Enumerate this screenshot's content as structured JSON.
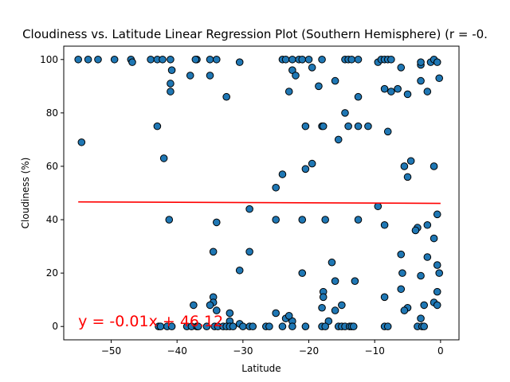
{
  "chart_data": {
    "type": "scatter",
    "title": "Cloudiness vs. Latitude Linear Regression Plot (Southern Hemisphere) (r = -0.",
    "xlabel": "Latitude",
    "ylabel": "Cloudiness (%)",
    "xlim": [
      -57.2,
      2.8
    ],
    "ylim": [
      -5,
      105
    ],
    "xticks": [
      -50,
      -40,
      -30,
      -20,
      -10,
      0
    ],
    "yticks": [
      0,
      20,
      40,
      60,
      80,
      100
    ],
    "xtick_labels": [
      "−50",
      "−40",
      "−30",
      "−20",
      "−10",
      "0"
    ],
    "ytick_labels": [
      "0",
      "20",
      "40",
      "60",
      "80",
      "100"
    ],
    "point_color": "#1f77b4",
    "point_edge_color": "#000000",
    "line_color": "#ff0000",
    "regression": {
      "equation": "y = -0.01x + 46.12",
      "x": [
        -55,
        0
      ],
      "y": [
        46.67,
        46.12
      ],
      "equation_x": -55,
      "equation_y": 0
    },
    "points": [
      [
        -55,
        100
      ],
      [
        -53.5,
        100
      ],
      [
        -52,
        100
      ],
      [
        -49.5,
        100
      ],
      [
        -47,
        100
      ],
      [
        -46.8,
        99
      ],
      [
        -44,
        100
      ],
      [
        -43,
        100
      ],
      [
        -42.2,
        100
      ],
      [
        -41,
        100
      ],
      [
        -54.5,
        69
      ],
      [
        -43,
        75
      ],
      [
        -41,
        91
      ],
      [
        -40.8,
        96
      ],
      [
        -41,
        88
      ],
      [
        -38,
        94
      ],
      [
        -37,
        100
      ],
      [
        -37.2,
        100
      ],
      [
        -35,
        100
      ],
      [
        -34,
        100
      ],
      [
        -35,
        94
      ],
      [
        -32.5,
        86
      ],
      [
        -30.5,
        99
      ],
      [
        -42,
        63
      ],
      [
        -41.2,
        40
      ],
      [
        -34,
        39
      ],
      [
        -29,
        44
      ],
      [
        -34.5,
        28
      ],
      [
        -29,
        28
      ],
      [
        -30.5,
        21
      ],
      [
        -34.5,
        11
      ],
      [
        -34.5,
        9
      ],
      [
        -35,
        8
      ],
      [
        -37.5,
        8
      ],
      [
        -34,
        6
      ],
      [
        -32,
        5
      ],
      [
        -32,
        2
      ],
      [
        -42.8,
        0
      ],
      [
        -42.5,
        0
      ],
      [
        -41.5,
        0
      ],
      [
        -40.8,
        0
      ],
      [
        -38.5,
        0
      ],
      [
        -37.8,
        0
      ],
      [
        -37,
        0
      ],
      [
        -36.8,
        0
      ],
      [
        -35.5,
        0
      ],
      [
        -34.3,
        0
      ],
      [
        -33.8,
        0
      ],
      [
        -33,
        0
      ],
      [
        -32.5,
        0
      ],
      [
        -32,
        0
      ],
      [
        -31.5,
        0
      ],
      [
        -30.5,
        1
      ],
      [
        -30,
        0
      ],
      [
        -29,
        0
      ],
      [
        -28.5,
        0
      ],
      [
        -26.5,
        0
      ],
      [
        -26,
        0
      ],
      [
        -24,
        100
      ],
      [
        -23.5,
        100
      ],
      [
        -22.5,
        100
      ],
      [
        -21.5,
        100
      ],
      [
        -21,
        100
      ],
      [
        -20,
        100
      ],
      [
        -18,
        100
      ],
      [
        -14.5,
        100
      ],
      [
        -14,
        100
      ],
      [
        -13.5,
        100
      ],
      [
        -12.5,
        100
      ],
      [
        -22.5,
        96
      ],
      [
        -22,
        94
      ],
      [
        -19.5,
        97
      ],
      [
        -16,
        92
      ],
      [
        -18.5,
        90
      ],
      [
        -23,
        88
      ],
      [
        -12.5,
        86
      ],
      [
        -14.5,
        80
      ],
      [
        -20.5,
        75
      ],
      [
        -18,
        75
      ],
      [
        -17.8,
        75
      ],
      [
        -12.5,
        75
      ],
      [
        -14,
        75
      ],
      [
        -11,
        75
      ],
      [
        -15.5,
        70
      ],
      [
        -19.5,
        61
      ],
      [
        -20.5,
        59
      ],
      [
        -24,
        57
      ],
      [
        -25,
        52
      ],
      [
        -25,
        40
      ],
      [
        -21,
        40
      ],
      [
        -17.5,
        40
      ],
      [
        -12.5,
        40
      ],
      [
        -21,
        20
      ],
      [
        -16.5,
        24
      ],
      [
        -16,
        17
      ],
      [
        -13,
        17
      ],
      [
        -17.8,
        13
      ],
      [
        -17.8,
        11
      ],
      [
        -15,
        8
      ],
      [
        -18,
        7
      ],
      [
        -16,
        6
      ],
      [
        -17,
        2
      ],
      [
        -22.5,
        2
      ],
      [
        -23.5,
        3
      ],
      [
        -23,
        4
      ],
      [
        -25,
        5
      ],
      [
        -24,
        0
      ],
      [
        -22.5,
        0
      ],
      [
        -20.5,
        0
      ],
      [
        -18,
        0
      ],
      [
        -17.5,
        0
      ],
      [
        -15.5,
        0
      ],
      [
        -15,
        0
      ],
      [
        -14.5,
        0
      ],
      [
        -13.8,
        0
      ],
      [
        -13.5,
        0
      ],
      [
        -13.2,
        0
      ],
      [
        -9.5,
        99
      ],
      [
        -9,
        100
      ],
      [
        -8.5,
        100
      ],
      [
        -8,
        100
      ],
      [
        -7.5,
        100
      ],
      [
        -6,
        97
      ],
      [
        -3,
        98
      ],
      [
        -3,
        99
      ],
      [
        -1.5,
        99
      ],
      [
        -1,
        100
      ],
      [
        -0.5,
        99
      ],
      [
        -8.5,
        89
      ],
      [
        -7.5,
        88
      ],
      [
        -6.5,
        89
      ],
      [
        -5,
        87
      ],
      [
        -2,
        88
      ],
      [
        -0.2,
        93
      ],
      [
        -3,
        92
      ],
      [
        -8,
        73
      ],
      [
        -4.5,
        62
      ],
      [
        -5.5,
        60
      ],
      [
        -5,
        56
      ],
      [
        -1,
        60
      ],
      [
        -9.5,
        45
      ],
      [
        -0.5,
        42
      ],
      [
        -2,
        38
      ],
      [
        -8.5,
        38
      ],
      [
        -3.5,
        37
      ],
      [
        -3.8,
        36
      ],
      [
        -1,
        33
      ],
      [
        -6,
        27
      ],
      [
        -2,
        26
      ],
      [
        -0.5,
        23
      ],
      [
        -0.2,
        20
      ],
      [
        -5.8,
        20
      ],
      [
        -3,
        19
      ],
      [
        -6,
        14
      ],
      [
        -0.5,
        13
      ],
      [
        -8.5,
        11
      ],
      [
        -1,
        9
      ],
      [
        -0.5,
        8
      ],
      [
        -2.5,
        8
      ],
      [
        -5,
        7
      ],
      [
        -5.5,
        6
      ],
      [
        -3,
        3
      ],
      [
        -3.5,
        0
      ],
      [
        -2.8,
        0
      ],
      [
        -2.5,
        0
      ],
      [
        -8.5,
        0
      ],
      [
        -8,
        0
      ]
    ]
  }
}
